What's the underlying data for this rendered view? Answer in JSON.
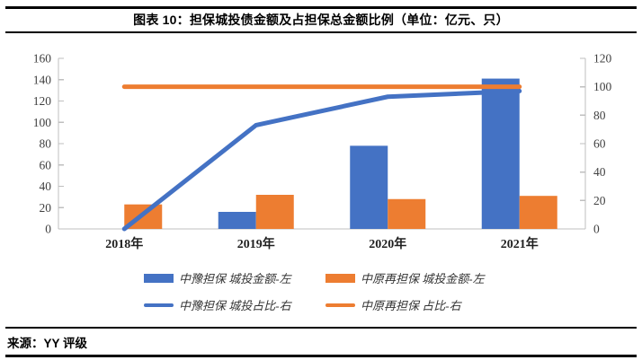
{
  "header": {
    "title": "图表 10：担保城投债金额及占担保总金额比例（单位：亿元、只）"
  },
  "footer": {
    "source": "来源：YY 评级"
  },
  "colors": {
    "series_blue": "#4472C4",
    "series_orange": "#ED7D31",
    "axis_line": "#BFBFBF",
    "tick_text": "#404040",
    "x_label_text": "#1f1f1f"
  },
  "chart_data": {
    "type": "bar",
    "subtype": "clustered-bar-with-lines-combo",
    "title": "图表 10：担保城投债金额及占担保总金额比例（单位：亿元、只）",
    "categories": [
      "2018年",
      "2019年",
      "2020年",
      "2021年"
    ],
    "series": [
      {
        "name": "中豫担保 城投金额-左",
        "type": "bar",
        "axis": "left",
        "color": "#4472C4",
        "values": [
          0,
          16,
          78,
          141
        ]
      },
      {
        "name": "中原再担保 城投金额-左",
        "type": "bar",
        "axis": "left",
        "color": "#ED7D31",
        "values": [
          23,
          32,
          28,
          31
        ]
      },
      {
        "name": "中豫担保 城投占比-右",
        "type": "line",
        "axis": "right",
        "color": "#4472C4",
        "values": [
          0,
          73,
          93,
          97
        ]
      },
      {
        "name": "中原再担保 占比-右",
        "type": "line",
        "axis": "right",
        "color": "#ED7D31",
        "values": [
          100,
          100,
          100,
          100
        ]
      }
    ],
    "left_axis": {
      "min": 0,
      "max": 160,
      "step": 20,
      "ticks": [
        0,
        20,
        40,
        60,
        80,
        100,
        120,
        140,
        160
      ]
    },
    "right_axis": {
      "min": 0,
      "max": 120,
      "step": 20,
      "ticks": [
        0,
        20,
        40,
        60,
        80,
        100,
        120
      ]
    },
    "xlabel": "",
    "ylabel_left": "",
    "ylabel_right": "",
    "grid": false,
    "legend_position": "bottom"
  }
}
